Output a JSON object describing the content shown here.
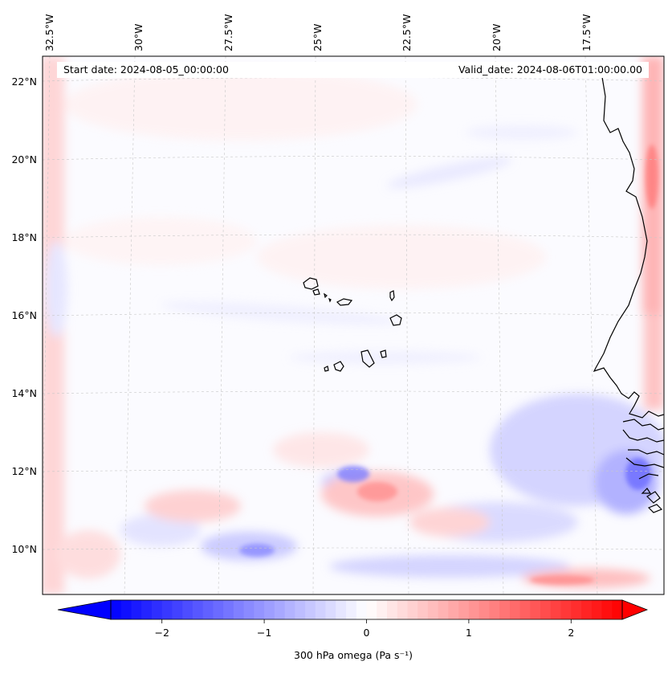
{
  "map": {
    "start_date": "Start date: 2024-08-05_00:00:00",
    "valid_date": "Valid_date: 2024-08-06T01:00:00.00",
    "lon_ticks": [
      "32.5°W",
      "30°W",
      "27.5°W",
      "25°W",
      "22.5°W",
      "20°W",
      "17.5°W"
    ],
    "lat_ticks": [
      "22°N",
      "20°N",
      "18°N",
      "16°N",
      "14°N",
      "12°N",
      "10°N"
    ],
    "extent": {
      "lon_min": -33.0,
      "lon_max": -15.5,
      "lat_min": 8.9,
      "lat_max": 22.8
    }
  },
  "colorbar": {
    "label": "300 hPa omega (Pa s⁻¹)",
    "ticks": [
      "−2",
      "−1",
      "0",
      "1",
      "2"
    ],
    "tick_values": [
      -2,
      -1,
      0,
      1,
      2
    ],
    "range": [
      -2.5,
      2.5
    ],
    "colormap": "bwr",
    "colors": {
      "low": "#0000ff",
      "mid": "#ffffff",
      "high": "#ff0000"
    }
  }
}
